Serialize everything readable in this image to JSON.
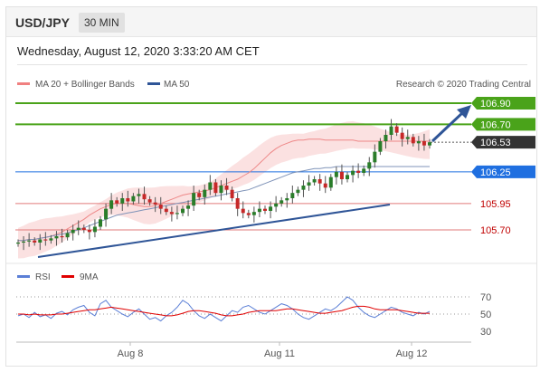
{
  "header": {
    "symbol": "USD/JPY",
    "timeframe": "30 MIN"
  },
  "datetime": "Wednesday, August 12, 2020 3:33:20 AM CET",
  "legend": {
    "items": [
      {
        "label": "MA 20 + Bollinger Bands",
        "color": "#f08080"
      },
      {
        "label": "MA 50",
        "color": "#2f5597"
      }
    ],
    "credit": "Research © 2020 Trading Central"
  },
  "rsi_legend": {
    "items": [
      {
        "label": "RSI",
        "color": "#5b7fd6"
      },
      {
        "label": "9MA",
        "color": "#e00000"
      }
    ]
  },
  "colors": {
    "green": "#4aa31a",
    "blue_tag": "#1f6fe0",
    "dark_tag": "#333333",
    "red_text": "#c00000",
    "arrow": "#2f5597"
  },
  "chart_data": [
    {
      "type": "candlestick",
      "title": "",
      "x_ticks": [
        "Aug 8",
        "Aug 11",
        "Aug 12"
      ],
      "price_levels": [
        {
          "value": 106.9,
          "label": "106.90",
          "style": "green-resistance"
        },
        {
          "value": 106.7,
          "label": "106.70",
          "style": "green-resistance"
        },
        {
          "value": 106.53,
          "label": "106.53",
          "style": "current-price"
        },
        {
          "value": 106.25,
          "label": "106.25",
          "style": "blue-pivot"
        },
        {
          "value": 105.95,
          "label": "105.95",
          "style": "red-support"
        },
        {
          "value": 105.7,
          "label": "105.70",
          "style": "red-support"
        }
      ],
      "ylim": [
        105.55,
        107.0
      ],
      "close_series": [
        105.58,
        105.59,
        105.6,
        105.58,
        105.61,
        105.6,
        105.62,
        105.64,
        105.63,
        105.67,
        105.7,
        105.72,
        105.7,
        105.68,
        105.73,
        105.8,
        105.9,
        105.98,
        105.95,
        106.0,
        105.97,
        106.02,
        106.04,
        105.99,
        105.96,
        105.94,
        105.9,
        105.87,
        105.85,
        105.86,
        105.9,
        105.93,
        106.05,
        106.01,
        106.08,
        106.15,
        106.05,
        106.12,
        106.08,
        106.0,
        105.9,
        105.86,
        105.84,
        105.87,
        105.9,
        105.88,
        105.92,
        105.95,
        105.98,
        106.0,
        106.05,
        106.08,
        106.12,
        106.15,
        106.18,
        106.14,
        106.1,
        106.2,
        106.25,
        106.18,
        106.22,
        106.26,
        106.24,
        106.28,
        106.34,
        106.44,
        106.54,
        106.6,
        106.68,
        106.62,
        106.56,
        106.58,
        106.52,
        106.54,
        106.5,
        106.53
      ],
      "ma20_series": [
        105.6,
        105.6,
        105.61,
        105.61,
        105.62,
        105.63,
        105.64,
        105.66,
        105.68,
        105.71,
        105.74,
        105.77,
        105.8,
        105.84,
        105.87,
        105.9,
        105.92,
        105.94,
        105.95,
        105.95,
        105.95,
        105.94,
        105.93,
        105.92,
        105.92,
        105.93,
        105.95,
        105.97,
        105.99,
        106.01,
        106.03,
        106.04,
        106.05,
        106.06,
        106.07,
        106.08,
        106.1,
        106.12,
        106.14,
        106.16,
        106.18,
        106.21,
        106.24,
        106.28,
        106.33,
        106.38,
        106.43,
        106.47,
        106.5,
        106.52,
        106.54,
        106.55,
        106.55,
        106.56,
        106.56,
        106.56,
        106.55,
        106.55,
        106.55,
        106.55,
        106.55,
        106.55,
        106.54,
        106.54,
        106.54,
        106.54,
        106.54,
        106.54,
        106.54,
        106.54,
        106.54,
        106.54,
        106.54,
        106.54,
        106.54,
        106.54
      ],
      "ma50_series": [
        105.6,
        105.6,
        105.61,
        105.61,
        105.62,
        105.63,
        105.64,
        105.65,
        105.66,
        105.67,
        105.69,
        105.7,
        105.72,
        105.74,
        105.76,
        105.78,
        105.8,
        105.82,
        105.84,
        105.85,
        105.86,
        105.87,
        105.88,
        105.89,
        105.9,
        105.91,
        105.92,
        105.93,
        105.94,
        105.95,
        105.96,
        105.97,
        105.98,
        105.99,
        106.0,
        106.01,
        106.02,
        106.03,
        106.04,
        106.05,
        106.06,
        106.07,
        106.08,
        106.1,
        106.12,
        106.14,
        106.16,
        106.18,
        106.2,
        106.22,
        106.24,
        106.25,
        106.26,
        106.27,
        106.28,
        106.28,
        106.29,
        106.29,
        106.3,
        106.3,
        106.3,
        106.3,
        106.3,
        106.3,
        106.3,
        106.3,
        106.3,
        106.3,
        106.3,
        106.3,
        106.3,
        106.3,
        106.3,
        106.3,
        106.3,
        106.3
      ]
    },
    {
      "type": "line",
      "title": "",
      "y_ticks": [
        70,
        50,
        30
      ],
      "ylim": [
        20,
        80
      ],
      "series": [
        {
          "name": "RSI",
          "values": [
            48,
            50,
            46,
            52,
            47,
            49,
            45,
            51,
            53,
            49,
            55,
            58,
            60,
            52,
            48,
            62,
            66,
            58,
            54,
            50,
            47,
            52,
            56,
            50,
            44,
            46,
            42,
            48,
            52,
            58,
            66,
            62,
            54,
            48,
            45,
            50,
            46,
            42,
            48,
            54,
            52,
            58,
            60,
            56,
            52,
            50,
            54,
            58,
            62,
            60,
            56,
            50,
            46,
            44,
            48,
            52,
            56,
            54,
            58,
            64,
            70,
            66,
            58,
            52,
            48,
            46,
            50,
            54,
            58,
            56,
            52,
            50,
            48,
            52,
            50,
            53
          ]
        },
        {
          "name": "9MA",
          "values": [
            50,
            50,
            49,
            50,
            49,
            49,
            49,
            50,
            50,
            51,
            52,
            53,
            54,
            55,
            55,
            56,
            57,
            58,
            57,
            56,
            55,
            54,
            53,
            52,
            51,
            50,
            49,
            48,
            48,
            49,
            51,
            53,
            54,
            54,
            53,
            52,
            51,
            49,
            48,
            48,
            49,
            50,
            52,
            53,
            54,
            54,
            54,
            54,
            55,
            56,
            56,
            55,
            54,
            53,
            52,
            51,
            51,
            52,
            53,
            54,
            56,
            58,
            59,
            59,
            58,
            56,
            55,
            55,
            55,
            55,
            54,
            53,
            52,
            51,
            51,
            51
          ]
        }
      ]
    }
  ]
}
